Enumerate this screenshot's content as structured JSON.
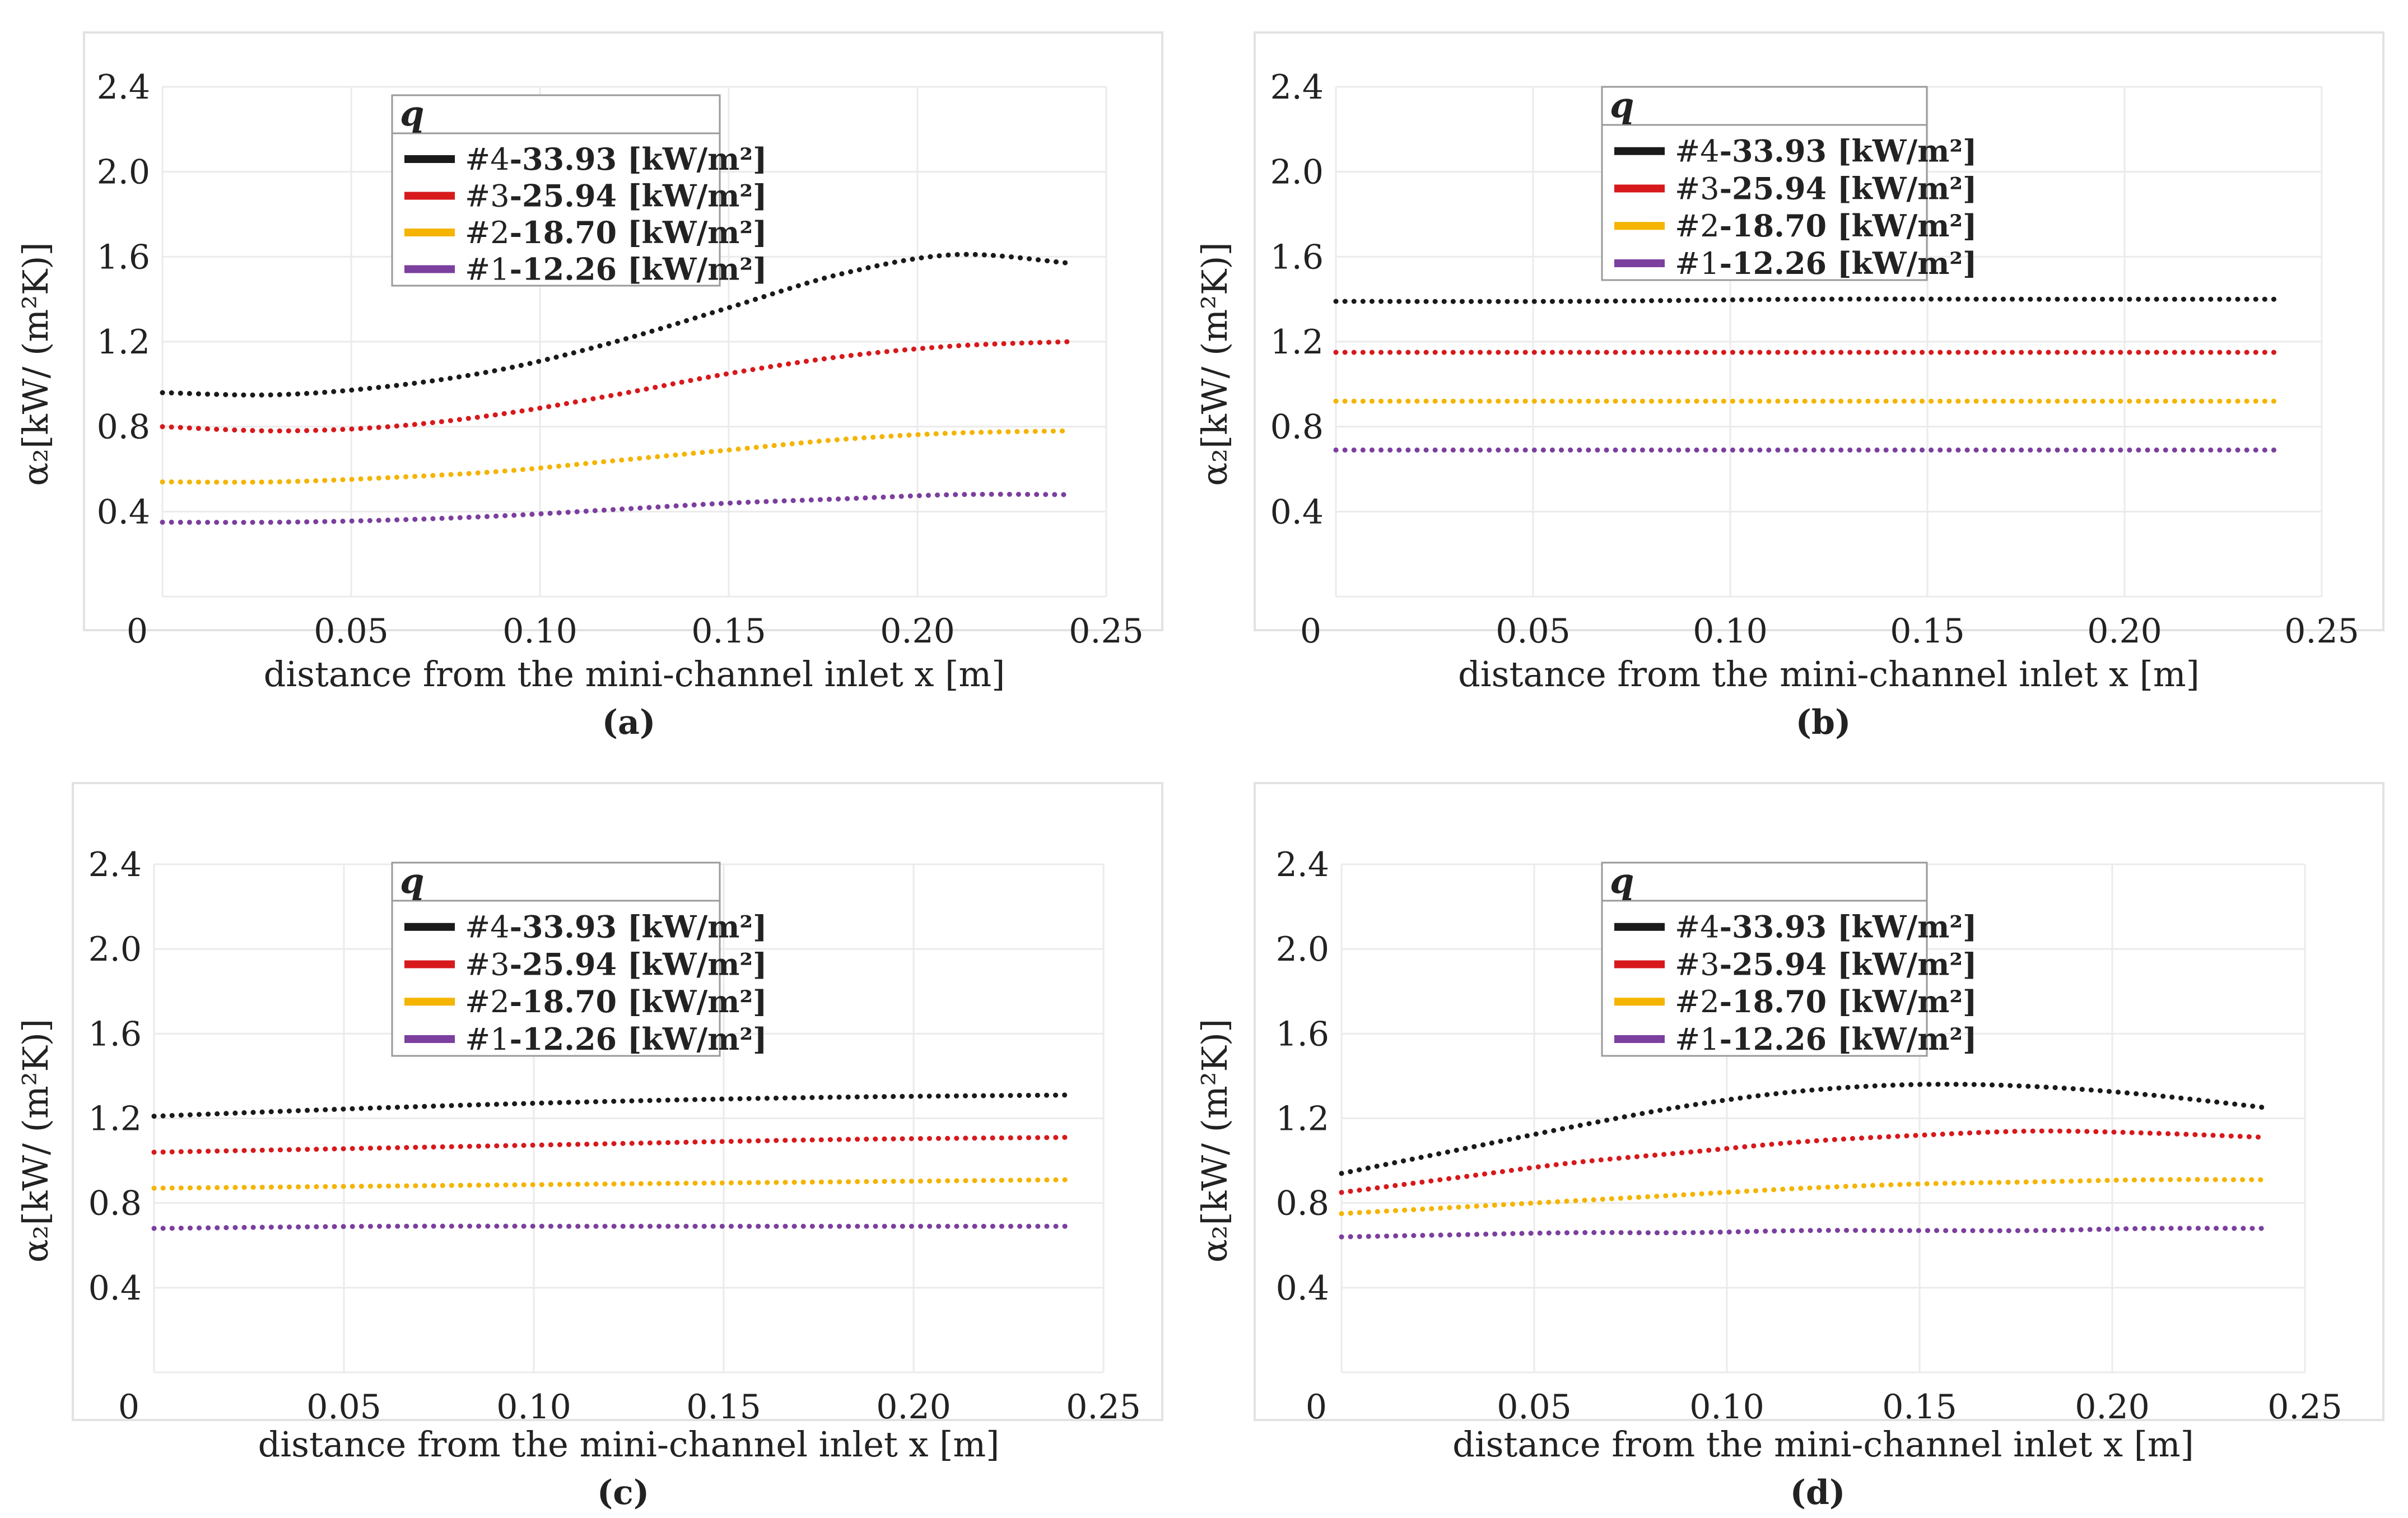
{
  "chart_data": [
    {
      "type": "line",
      "caption": "(a)",
      "xlabel": "distance from the mini-channel inlet x [m]",
      "ylabel": "α₂[kW/ (m²K)]",
      "xlim": [
        0,
        0.25
      ],
      "ylim": [
        0,
        2.4
      ],
      "xticks": [
        "0",
        "0.05",
        "0.10",
        "0.15",
        "0.20",
        "0.25"
      ],
      "yticks": [
        "0.4",
        "0.8",
        "1.2",
        "1.6",
        "2.0",
        "2.4"
      ],
      "grid": true,
      "legend": {
        "title": "q",
        "placement": "top-left"
      },
      "series": [
        {
          "name": "#4-33.93 [kW/m²]",
          "color": "#1a1a1a",
          "x": [
            0.0,
            0.03,
            0.06,
            0.09,
            0.12,
            0.15,
            0.18,
            0.21,
            0.24
          ],
          "y": [
            0.96,
            0.95,
            0.99,
            1.07,
            1.2,
            1.36,
            1.52,
            1.61,
            1.57
          ]
        },
        {
          "name": "#3-25.94 [kW/m²]",
          "color": "#d7191c",
          "x": [
            0.0,
            0.03,
            0.06,
            0.09,
            0.12,
            0.15,
            0.18,
            0.21,
            0.24
          ],
          "y": [
            0.8,
            0.78,
            0.8,
            0.86,
            0.95,
            1.05,
            1.13,
            1.18,
            1.2
          ]
        },
        {
          "name": "#2-18.70 [kW/m²]",
          "color": "#f4b400",
          "x": [
            0.0,
            0.03,
            0.06,
            0.09,
            0.12,
            0.15,
            0.18,
            0.21,
            0.24
          ],
          "y": [
            0.54,
            0.54,
            0.56,
            0.59,
            0.64,
            0.69,
            0.74,
            0.77,
            0.78
          ]
        },
        {
          "name": "#1-12.26 [kW/m²]",
          "color": "#7b3f9e",
          "x": [
            0.0,
            0.03,
            0.06,
            0.09,
            0.12,
            0.15,
            0.18,
            0.21,
            0.24
          ],
          "y": [
            0.35,
            0.35,
            0.36,
            0.38,
            0.41,
            0.44,
            0.46,
            0.48,
            0.48
          ]
        }
      ]
    },
    {
      "type": "line",
      "caption": "(b)",
      "xlabel": "distance from the mini-channel inlet x [m]",
      "ylabel": "α₂[kW/ (m²K)]",
      "xlim": [
        0,
        0.25
      ],
      "ylim": [
        0,
        2.4
      ],
      "xticks": [
        "0",
        "0.05",
        "0.10",
        "0.15",
        "0.20",
        "0.25"
      ],
      "yticks": [
        "0.4",
        "0.8",
        "1.2",
        "1.6",
        "2.0",
        "2.4"
      ],
      "grid": true,
      "legend": {
        "title": "q",
        "placement": "top-left"
      },
      "series": [
        {
          "name": "#4-33.93 [kW/m²]",
          "color": "#1a1a1a",
          "x": [
            0.0,
            0.06,
            0.12,
            0.18,
            0.24
          ],
          "y": [
            1.39,
            1.39,
            1.4,
            1.4,
            1.4
          ]
        },
        {
          "name": "#3-25.94 [kW/m²]",
          "color": "#d7191c",
          "x": [
            0.0,
            0.06,
            0.12,
            0.18,
            0.24
          ],
          "y": [
            1.15,
            1.15,
            1.15,
            1.15,
            1.15
          ]
        },
        {
          "name": "#2-18.70 [kW/m²]",
          "color": "#f4b400",
          "x": [
            0.0,
            0.06,
            0.12,
            0.18,
            0.24
          ],
          "y": [
            0.92,
            0.92,
            0.92,
            0.92,
            0.92
          ]
        },
        {
          "name": "#1-12.26 [kW/m²]",
          "color": "#7b3f9e",
          "x": [
            0.0,
            0.06,
            0.12,
            0.18,
            0.24
          ],
          "y": [
            0.69,
            0.69,
            0.69,
            0.69,
            0.69
          ]
        }
      ]
    },
    {
      "type": "line",
      "caption": "(c)",
      "xlabel": "distance from the mini-channel inlet x [m]",
      "ylabel": "α₂[kW/ (m²K)]",
      "xlim": [
        0,
        0.25
      ],
      "ylim": [
        0,
        2.4
      ],
      "xticks": [
        "0",
        "0.05",
        "0.10",
        "0.15",
        "0.20",
        "0.25"
      ],
      "yticks": [
        "0.4",
        "0.8",
        "1.2",
        "1.6",
        "2.0",
        "2.4"
      ],
      "grid": true,
      "legend": {
        "title": "q",
        "placement": "top-left"
      },
      "series": [
        {
          "name": "#4-33.93 [kW/m²]",
          "color": "#1a1a1a",
          "x": [
            0.0,
            0.06,
            0.12,
            0.18,
            0.24
          ],
          "y": [
            1.21,
            1.25,
            1.28,
            1.3,
            1.31
          ]
        },
        {
          "name": "#3-25.94 [kW/m²]",
          "color": "#d7191c",
          "x": [
            0.0,
            0.06,
            0.12,
            0.18,
            0.24
          ],
          "y": [
            1.04,
            1.06,
            1.08,
            1.1,
            1.11
          ]
        },
        {
          "name": "#2-18.70 [kW/m²]",
          "color": "#f4b400",
          "x": [
            0.0,
            0.06,
            0.12,
            0.18,
            0.24
          ],
          "y": [
            0.87,
            0.88,
            0.89,
            0.9,
            0.91
          ]
        },
        {
          "name": "#1-12.26 [kW/m²]",
          "color": "#7b3f9e",
          "x": [
            0.0,
            0.06,
            0.12,
            0.18,
            0.24
          ],
          "y": [
            0.68,
            0.69,
            0.69,
            0.69,
            0.69
          ]
        }
      ]
    },
    {
      "type": "line",
      "caption": "(d)",
      "xlabel": "distance from the mini-channel inlet x [m]",
      "ylabel": "α₂[kW/ (m²K)]",
      "xlim": [
        0,
        0.25
      ],
      "ylim": [
        0,
        2.4
      ],
      "xticks": [
        "0",
        "0.05",
        "0.10",
        "0.15",
        "0.20",
        "0.25"
      ],
      "yticks": [
        "0.4",
        "0.8",
        "1.2",
        "1.6",
        "2.0",
        "2.4"
      ],
      "grid": true,
      "legend": {
        "title": "q",
        "placement": "top-left"
      },
      "series": [
        {
          "name": "#4-33.93 [kW/m²]",
          "color": "#1a1a1a",
          "x": [
            0.0,
            0.03,
            0.06,
            0.09,
            0.12,
            0.15,
            0.18,
            0.21,
            0.24
          ],
          "y": [
            0.94,
            1.05,
            1.16,
            1.26,
            1.33,
            1.36,
            1.35,
            1.31,
            1.25
          ]
        },
        {
          "name": "#3-25.94 [kW/m²]",
          "color": "#d7191c",
          "x": [
            0.0,
            0.03,
            0.06,
            0.09,
            0.12,
            0.15,
            0.18,
            0.21,
            0.24
          ],
          "y": [
            0.85,
            0.92,
            0.99,
            1.04,
            1.09,
            1.12,
            1.14,
            1.13,
            1.11
          ]
        },
        {
          "name": "#2-18.70 [kW/m²]",
          "color": "#f4b400",
          "x": [
            0.0,
            0.03,
            0.06,
            0.09,
            0.12,
            0.15,
            0.18,
            0.21,
            0.24
          ],
          "y": [
            0.75,
            0.78,
            0.81,
            0.84,
            0.87,
            0.89,
            0.9,
            0.91,
            0.91
          ]
        },
        {
          "name": "#1-12.26 [kW/m²]",
          "color": "#7b3f9e",
          "x": [
            0.0,
            0.03,
            0.06,
            0.09,
            0.12,
            0.15,
            0.18,
            0.21,
            0.24
          ],
          "y": [
            0.64,
            0.65,
            0.66,
            0.66,
            0.67,
            0.67,
            0.67,
            0.68,
            0.68
          ]
        }
      ]
    }
  ]
}
